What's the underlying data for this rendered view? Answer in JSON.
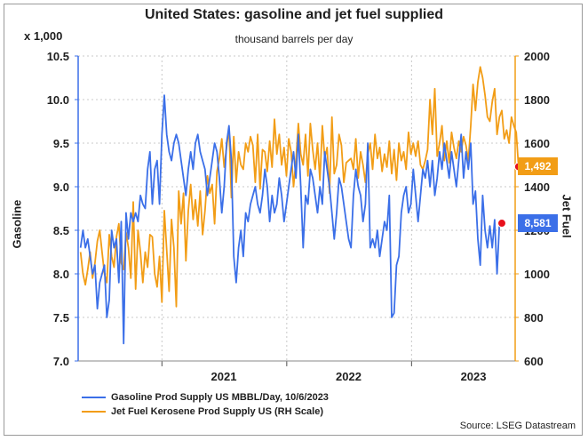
{
  "title": "United States: gasoline and jet fuel supplied",
  "subtitle": "thousand barrels per day",
  "left_axis_multiplier": "x 1,000",
  "source": "Source: LSEG Datastream",
  "colors": {
    "gasoline": "#3b6fe8",
    "jet_fuel": "#f29d16",
    "marker": "#e8101c"
  },
  "chart_data": {
    "type": "line",
    "xlabel": "",
    "x_tick_labels": [
      "2021",
      "2022",
      "2023"
    ],
    "left_axis": {
      "label": "Gasoline",
      "ylim": [
        7.0,
        10.5
      ],
      "ticks": [
        "10.5",
        "10.0",
        "9.5",
        "9.0",
        "8.5",
        "8.0",
        "7.5",
        "7.0"
      ]
    },
    "right_axis": {
      "label": "Jet Fuel",
      "ylim": [
        600,
        2000
      ],
      "ticks": [
        "2000",
        "1800",
        "1600",
        "1400",
        "1200",
        "1000",
        "800",
        "600"
      ]
    },
    "x_range": [
      "2020-05-01",
      "2023-10-31"
    ],
    "grid": true,
    "legend_position": "bottom-left",
    "series": [
      {
        "name": "Gasoline Prod Supply US MBBL/Day, 10/6/2023",
        "axis": "left",
        "start_date": "2020-05-08",
        "step_days": 7,
        "last_value_label": "8,581",
        "values": [
          8.3,
          8.5,
          8.3,
          8.4,
          8.2,
          8.0,
          8.1,
          7.6,
          7.9,
          8.0,
          8.1,
          7.5,
          7.7,
          8.5,
          8.3,
          8.4,
          7.9,
          8.6,
          7.2,
          8.7,
          8.4,
          8.7,
          8.6,
          8.7,
          8.6,
          8.9,
          8.8,
          8.75,
          9.2,
          9.4,
          8.8,
          9.2,
          9.3,
          8.8,
          9.6,
          10.05,
          9.6,
          9.4,
          9.3,
          9.5,
          9.6,
          9.5,
          9.3,
          9.1,
          8.9,
          9.2,
          9.4,
          9.2,
          9.5,
          9.6,
          9.4,
          9.3,
          9.2,
          8.9,
          9.1,
          9.3,
          9.5,
          9.4,
          9.1,
          8.7,
          9.0,
          9.5,
          9.7,
          9.3,
          8.2,
          7.9,
          8.3,
          8.5,
          8.2,
          8.7,
          8.6,
          8.8,
          8.9,
          9.0,
          8.8,
          8.7,
          8.9,
          9.2,
          9.0,
          8.6,
          8.9,
          8.7,
          8.8,
          9.1,
          8.9,
          8.6,
          8.8,
          9.0,
          9.2,
          9.4,
          9.1,
          9.6,
          9.0,
          8.3,
          8.9,
          8.8,
          9.2,
          9.1,
          8.9,
          8.7,
          9.0,
          8.8,
          9.4,
          9.2,
          9.0,
          8.7,
          8.4,
          8.7,
          9.1,
          9.0,
          8.8,
          8.6,
          8.4,
          8.3,
          8.9,
          9.2,
          9.0,
          8.9,
          8.6,
          8.8,
          9.5,
          8.3,
          8.4,
          8.3,
          8.5,
          8.2,
          8.4,
          8.6,
          8.5,
          8.9,
          7.5,
          7.55,
          8.1,
          8.2,
          8.7,
          8.9,
          9.0,
          8.7,
          8.8,
          9.2,
          8.9,
          8.6,
          8.9,
          9.2,
          9.1,
          9.3,
          9.0,
          9.3,
          8.9,
          9.1,
          9.4,
          9.2,
          9.5,
          9.3,
          9.1,
          9.4,
          9.2,
          9.0,
          9.3,
          9.6,
          9.1,
          9.4,
          9.2,
          9.5,
          8.8,
          8.95,
          8.4,
          8.1,
          8.9,
          8.5,
          8.3,
          8.55,
          8.3,
          8.62,
          8.0,
          8.58,
          8.581
        ]
      },
      {
        "name": "Jet Fuel Kerosene Prod Supply US (RH Scale)",
        "axis": "right",
        "start_date": "2020-05-08",
        "step_days": 7,
        "last_value_label": "1,492",
        "values": [
          1100,
          1000,
          950,
          1020,
          1100,
          980,
          1050,
          1150,
          1200,
          1100,
          1000,
          960,
          1180,
          1080,
          1030,
          1170,
          1230,
          1050,
          1020,
          1190,
          1120,
          980,
          1330,
          930,
          1200,
          1100,
          960,
          1100,
          1030,
          1180,
          1170,
          1000,
          940,
          1080,
          870,
          1290,
          1110,
          920,
          1250,
          1120,
          850,
          1380,
          1230,
          1370,
          1060,
          1290,
          1410,
          1250,
          1340,
          1220,
          1380,
          1180,
          1290,
          1450,
          1370,
          1410,
          1230,
          1470,
          1530,
          1620,
          1490,
          1580,
          1670,
          1350,
          1630,
          1420,
          1560,
          1500,
          1480,
          1600,
          1560,
          1630,
          1590,
          1420,
          1640,
          1390,
          1570,
          1560,
          1470,
          1610,
          1490,
          1710,
          1550,
          1640,
          1500,
          1580,
          1450,
          1620,
          1560,
          1400,
          1520,
          1690,
          1550,
          1500,
          1640,
          1450,
          1690,
          1570,
          1480,
          1600,
          1430,
          1680,
          1530,
          1580,
          1370,
          1720,
          1460,
          1500,
          1640,
          1590,
          1420,
          1510,
          1520,
          1530,
          1480,
          1620,
          1440,
          1560,
          1500,
          1420,
          1550,
          1600,
          1480,
          1640,
          1530,
          1580,
          1470,
          1550,
          1490,
          1610,
          1460,
          1570,
          1430,
          1600,
          1520,
          1560,
          1480,
          1650,
          1550,
          1600,
          1540,
          1610,
          1500,
          1480,
          1520,
          1570,
          1800,
          1640,
          1850,
          1540,
          1600,
          1680,
          1520,
          1610,
          1510,
          1650,
          1580,
          1530,
          1610,
          1560,
          1630,
          1590,
          1520,
          1680,
          1870,
          1750,
          1880,
          1950,
          1900,
          1820,
          1720,
          1700,
          1790,
          1850,
          1640,
          1720,
          1750,
          1620,
          1660,
          1600,
          1720,
          1680,
          1650,
          1492
        ]
      }
    ]
  }
}
